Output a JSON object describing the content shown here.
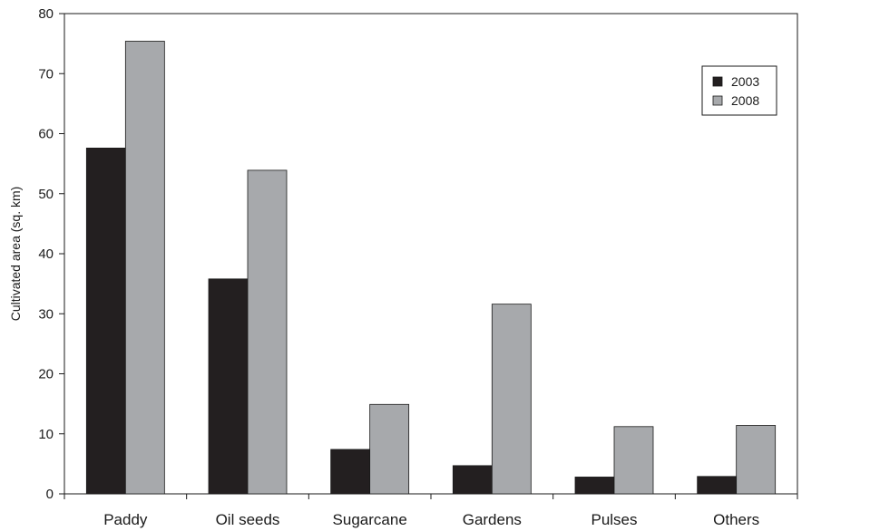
{
  "chart_data": {
    "type": "bar",
    "categories": [
      "Paddy",
      "Oil seeds",
      "Sugarcane",
      "Gardens",
      "Pulses",
      "Others"
    ],
    "series": [
      {
        "name": "2003",
        "values": [
          57.6,
          35.8,
          7.4,
          4.7,
          2.8,
          2.9
        ],
        "color": "#231f20"
      },
      {
        "name": "2008",
        "values": [
          75.4,
          53.9,
          14.9,
          31.6,
          11.2,
          11.4
        ],
        "color": "#a7a9ac"
      }
    ],
    "ylabel": "Cultivated area (sq. km)",
    "xlabel": "",
    "ylim": [
      0,
      80
    ],
    "yticks": [
      0,
      10,
      20,
      30,
      40,
      50,
      60,
      70,
      80
    ],
    "ytick_labels": [
      "0",
      "10",
      "20",
      "30",
      "40",
      "50",
      "60",
      "70",
      "80"
    ],
    "grid": false,
    "legend": "top-right inside"
  }
}
